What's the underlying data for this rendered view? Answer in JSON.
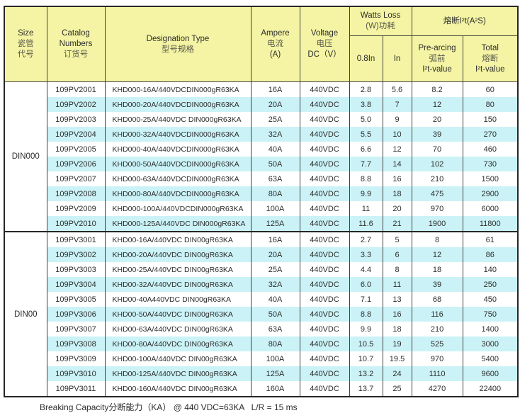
{
  "header": {
    "size": {
      "en": "Size",
      "cn1": "瓷管",
      "cn2": "代号"
    },
    "catalog": {
      "en1": "Catalog",
      "en2": "Numbers",
      "cn": "订货号"
    },
    "designation": {
      "en": "Designation Type",
      "cn": "型号规格"
    },
    "ampere": {
      "en": "Ampere",
      "cn": "电流",
      "unit": "(A)"
    },
    "voltage": {
      "en": "Voltage",
      "cn": "电压",
      "unit": "DC（V）"
    },
    "watts_loss": {
      "en": "Watts Loss",
      "cn": "(W)功耗",
      "col1": "0.8In",
      "col2": "In"
    },
    "i2t": {
      "title": "熔断I²t(A²S)",
      "prearcing": {
        "en": "Pre-arcing",
        "cn": "弧前",
        "sub": "I²t-value"
      },
      "total": {
        "en": "Total",
        "cn": "熔断",
        "sub": "I²t-value"
      }
    }
  },
  "groups": [
    {
      "size": "DIN000",
      "rows": [
        [
          "109PV2001",
          "KHD000-16A/440VDCDIN000gR63KA",
          "16A",
          "440VDC",
          "2.8",
          "5.6",
          "8.2",
          "60"
        ],
        [
          "109PV2002",
          "KHD000-20A/440VDCDIN000gR63KA",
          "20A",
          "440VDC",
          "3.8",
          "7",
          "12",
          "80"
        ],
        [
          "109PV2003",
          "KHD000-25A/440VDC DIN000gR63KA",
          "25A",
          "440VDC",
          "5.0",
          "9",
          "20",
          "150"
        ],
        [
          "109PV2004",
          "KHD000-32A/440VDCDIN000gR63KA",
          "32A",
          "440VDC",
          "5.5",
          "10",
          "39",
          "270"
        ],
        [
          "109PV2005",
          "KHD000-40A/440VDCDIN000gR63KA",
          "40A",
          "440VDC",
          "6.6",
          "12",
          "70",
          "460"
        ],
        [
          "109PV2006",
          "KHD000-50A/440VDCDIN000gR63KA",
          "50A",
          "440VDC",
          "7.7",
          "14",
          "102",
          "730"
        ],
        [
          "109PV2007",
          "KHD000-63A/440VDCDIN000gR63KA",
          "63A",
          "440VDC",
          "8.8",
          "16",
          "210",
          "1500"
        ],
        [
          "109PV2008",
          "KHD000-80A/440VDCDIN000gR63KA",
          "80A",
          "440VDC",
          "9.9",
          "18",
          "475",
          "2900"
        ],
        [
          "109PV2009",
          "KHD000-100A/440VDCDIN000gR63KA",
          "100A",
          "440VDC",
          "11",
          "20",
          "970",
          "6000"
        ],
        [
          "109PV2010",
          "KHD000-125A/440VDC DIN000gR63KA",
          "125A",
          "440VDC",
          "11.6",
          "21",
          "1900",
          "11800"
        ]
      ]
    },
    {
      "size": "DIN00",
      "rows": [
        [
          "109PV3001",
          "KHD00-16A/440VDC DIN00gR63KA",
          "16A",
          "440VDC",
          "2.7",
          "5",
          "8",
          "61"
        ],
        [
          "109PV3002",
          "KHD00-20A/440VDC DIN00gR63KA",
          "20A",
          "440VDC",
          "3.3",
          "6",
          "12",
          "86"
        ],
        [
          "109PV3003",
          "KHD00-25A/440VDC DIN00gR63KA",
          "25A",
          "440VDC",
          "4.4",
          "8",
          "18",
          "140"
        ],
        [
          "109PV3004",
          "KHD00-32A/440VDC DIN00gR63KA",
          "32A",
          "440VDC",
          "6.0",
          "11",
          "39",
          "250"
        ],
        [
          "109PV3005",
          "KHD00-40A440VDC DIN00gR63KA",
          "40A",
          "440VDC",
          "7.1",
          "13",
          "68",
          "450"
        ],
        [
          "109PV3006",
          "KHD00-50A/440VDC DIN00gR63KA",
          "50A",
          "440VDC",
          "8.8",
          "16",
          "116",
          "750"
        ],
        [
          "109PV3007",
          "KHD00-63A/440VDC DIN00gR63KA",
          "63A",
          "440VDC",
          "9.9",
          "18",
          "210",
          "1400"
        ],
        [
          "109PV3008",
          "KHD00-80A/440VDC DIN00gR63KA",
          "80A",
          "440VDC",
          "10.5",
          "19",
          "525",
          "3000"
        ],
        [
          "109PV3009",
          "KHD00-100A/440VDC DIN00gR63KA",
          "100A",
          "440VDC",
          "10.7",
          "19.5",
          "970",
          "5400"
        ],
        [
          "109PV3010",
          "KHD00-125A/440VDC DIN00gR63KA",
          "125A",
          "440VDC",
          "13.2",
          "24",
          "1110",
          "9600"
        ],
        [
          "109PV3011",
          "KHD00-160A/440VDC DIN00gR63KA",
          "160A",
          "440VDC",
          "13.7",
          "25",
          "4270",
          "22400"
        ]
      ]
    }
  ],
  "colors": {
    "header_bg": "#f4f4a4",
    "stripe_bg": "#cbf3f7",
    "border": "#3f3f3f"
  },
  "footer": {
    "text": "Breaking Capacity分断能力（KA） @ 440 VDC=63KA   L/R = 15 ms"
  }
}
